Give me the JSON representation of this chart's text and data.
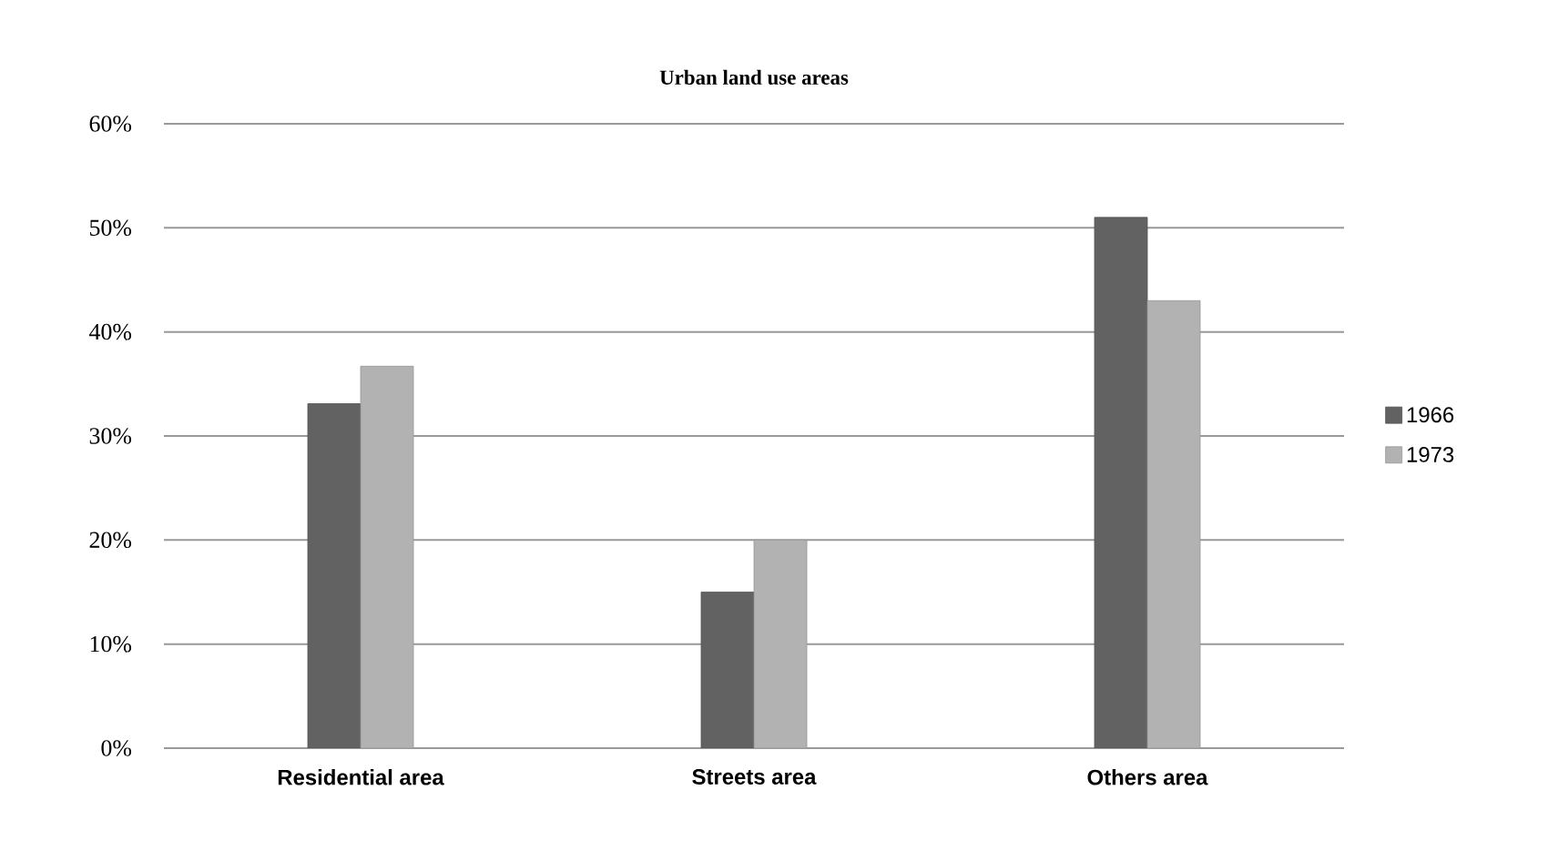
{
  "chart_data": {
    "type": "bar",
    "title": "Urban land use areas",
    "categories": [
      "Residential area",
      "Streets area",
      "Others area"
    ],
    "series": [
      {
        "name": "1966",
        "color": "#626262",
        "values": [
          33.1,
          15,
          51
        ]
      },
      {
        "name": "1973",
        "color": "#b2b2b2",
        "values": [
          36.7,
          20,
          43
        ]
      }
    ],
    "ylim": [
      0,
      60
    ],
    "yticks": [
      {
        "value": 0,
        "label": "0%"
      },
      {
        "value": 10,
        "label": "10%"
      },
      {
        "value": 20,
        "label": "20%"
      },
      {
        "value": 30,
        "label": "30%"
      },
      {
        "value": 40,
        "label": "40%"
      },
      {
        "value": 50,
        "label": "50%"
      },
      {
        "value": 60,
        "label": "60%"
      }
    ],
    "grid": "y",
    "legend": "right"
  }
}
